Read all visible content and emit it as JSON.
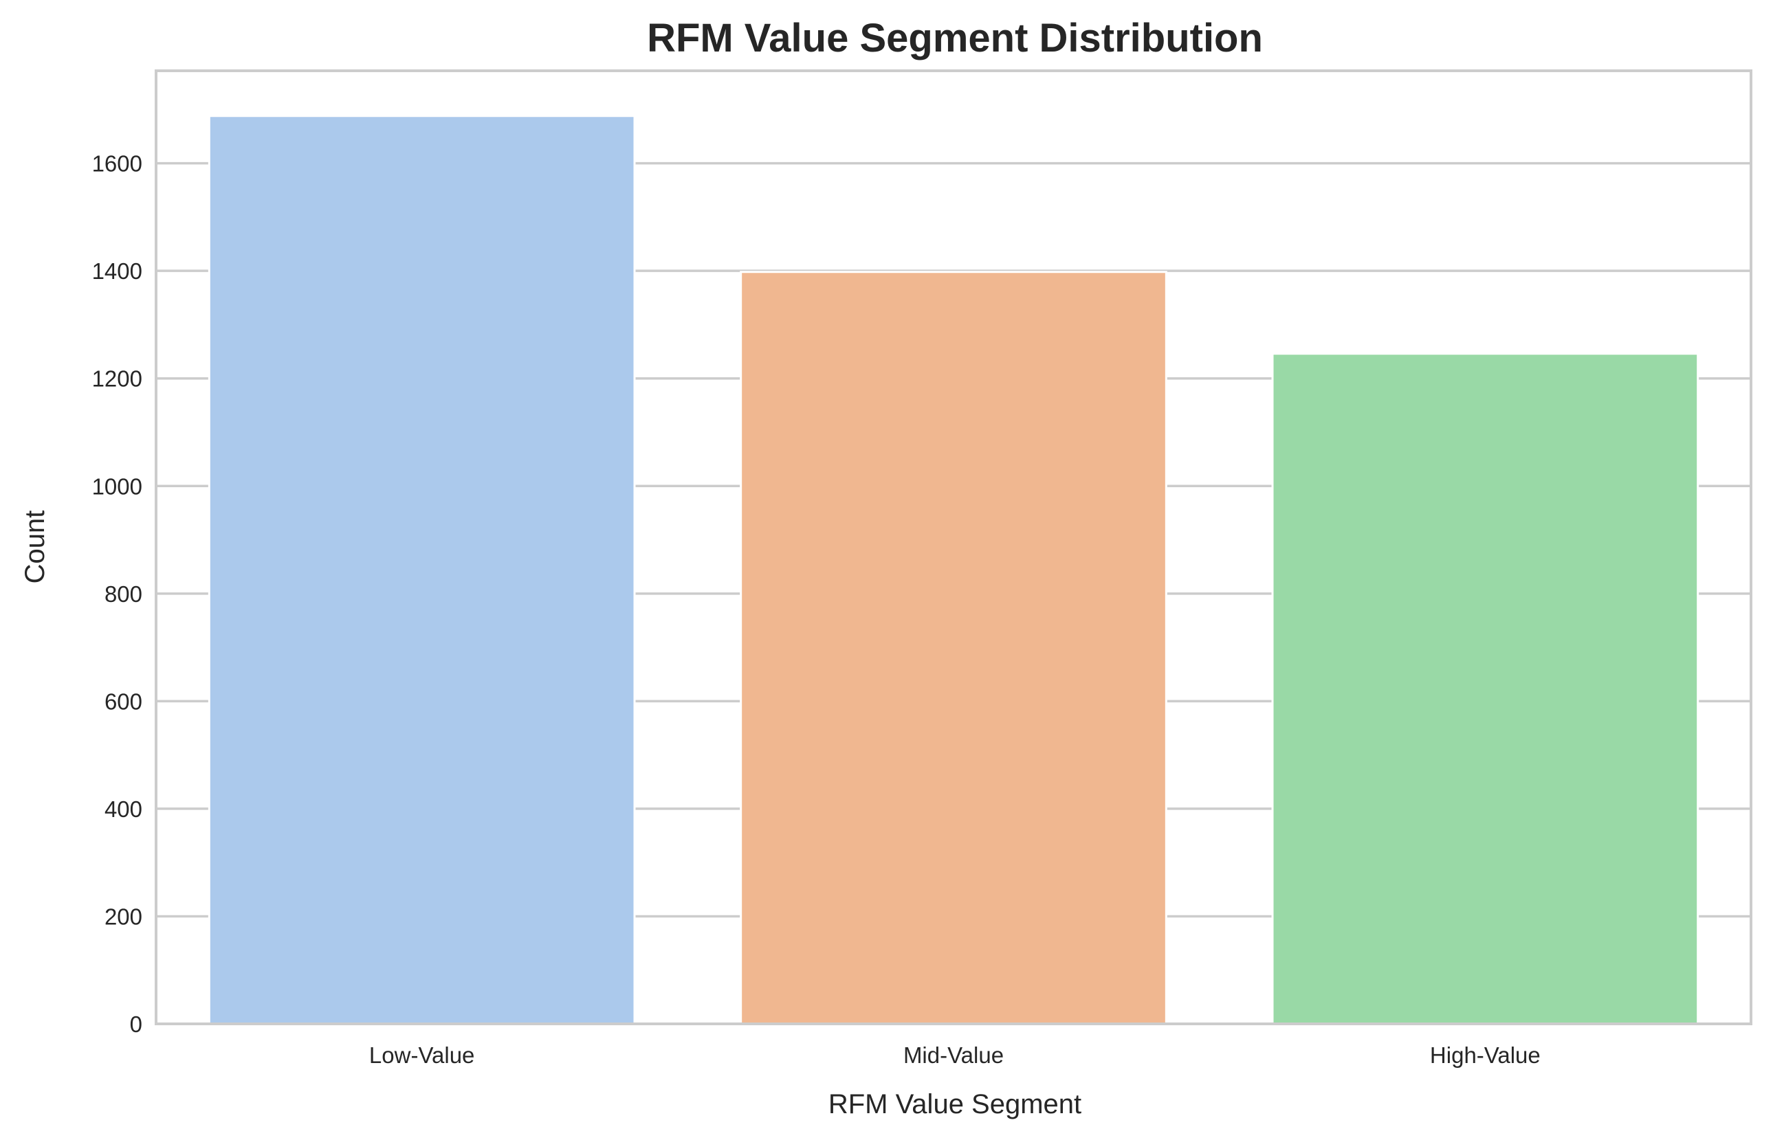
{
  "chart_data": {
    "type": "bar",
    "title": "RFM Value Segment Distribution",
    "xlabel": "RFM Value Segment",
    "ylabel": "Count",
    "categories": [
      "Low-Value",
      "Mid-Value",
      "High-Value"
    ],
    "values": [
      1688,
      1398,
      1246
    ],
    "colors": [
      "#abc9ec",
      "#f0b790",
      "#99d9a6"
    ],
    "ylim": [
      0,
      1772
    ],
    "yticks": [
      0,
      200,
      400,
      600,
      800,
      1000,
      1200,
      1400,
      1600
    ],
    "grid": true,
    "legend": "none"
  }
}
